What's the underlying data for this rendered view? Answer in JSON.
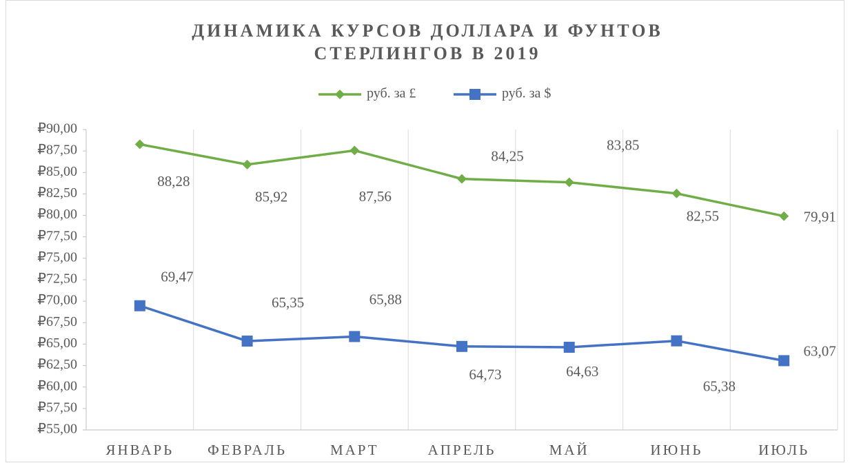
{
  "chart_data": {
    "type": "line",
    "title": "ДИНАМИКА КУРСОВ ДОЛЛАРА И ФУНТОВ СТЕРЛИНГОВ В 2019",
    "categories": [
      "ЯНВАРЬ",
      "ФЕВРАЛЬ",
      "МАРТ",
      "АПРЕЛЬ",
      "МАЙ",
      "ИЮНЬ",
      "ИЮЛЬ"
    ],
    "series": [
      {
        "name": "руб. за £",
        "color": "#70ad47",
        "marker": "diamond",
        "values": [
          88.28,
          85.92,
          87.56,
          84.25,
          83.85,
          82.55,
          79.91
        ],
        "value_labels": [
          "88,28",
          "85,92",
          "87,56",
          "84,25",
          "83,85",
          "82,55",
          "79,91"
        ]
      },
      {
        "name": "руб. за $",
        "color": "#4472c4",
        "marker": "square",
        "values": [
          69.47,
          65.35,
          65.88,
          64.73,
          64.63,
          65.38,
          63.07
        ],
        "value_labels": [
          "69,47",
          "65,35",
          "65,88",
          "64,73",
          "64,63",
          "65,38",
          "63,07"
        ]
      }
    ],
    "ylim": [
      55,
      90
    ],
    "yticks": [
      {
        "value": 55,
        "label": "₽55,00"
      },
      {
        "value": 57.5,
        "label": "₽57,50"
      },
      {
        "value": 60,
        "label": "₽60,00"
      },
      {
        "value": 62.5,
        "label": "₽62,50"
      },
      {
        "value": 65,
        "label": "₽65,00"
      },
      {
        "value": 67.5,
        "label": "₽67,50"
      },
      {
        "value": 70,
        "label": "₽70,00"
      },
      {
        "value": 72.5,
        "label": "₽72,50"
      },
      {
        "value": 75,
        "label": "₽75,00"
      },
      {
        "value": 77.5,
        "label": "₽77,50"
      },
      {
        "value": 80,
        "label": "₽80,00"
      },
      {
        "value": 82.5,
        "label": "₽82,50"
      },
      {
        "value": 85,
        "label": "₽85,00"
      },
      {
        "value": 87.5,
        "label": "₽87,50"
      },
      {
        "value": 90,
        "label": "₽90,00"
      }
    ],
    "legend": "top"
  }
}
